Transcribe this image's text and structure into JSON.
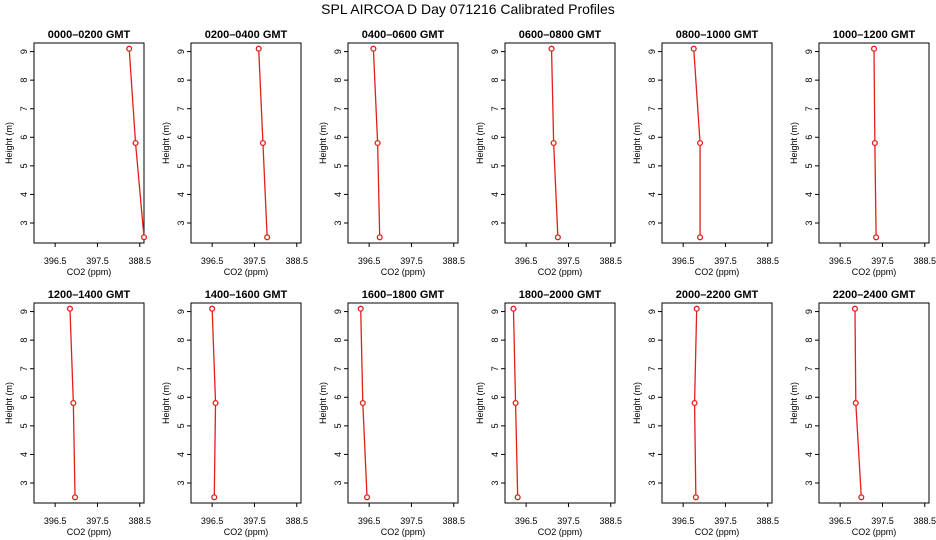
{
  "title": "SPL AIRCOA D  Day 071216  Calibrated Profiles",
  "colors": {
    "profile": "#e0201b",
    "axes": "#000000"
  },
  "chart_data": [
    {
      "type": "line",
      "title": "0000–0200 GMT",
      "xlabel": "CO2 (ppm)",
      "ylabel": "Height (m)",
      "xlim": [
        396.0,
        388.6
      ],
      "ylim": [
        2.3,
        9.3
      ],
      "x_ticks": [
        "396.5",
        "397.5",
        "388.5"
      ],
      "y_ticks": [
        "3",
        "4",
        "5",
        "6",
        "7",
        "8",
        "9"
      ],
      "series": [
        {
          "x": [
            388.25,
            388.4,
            388.6
          ],
          "y": [
            9.1,
            5.8,
            2.5
          ]
        }
      ]
    },
    {
      "type": "line",
      "title": "0200–0400 GMT",
      "xlabel": "CO2 (ppm)",
      "ylabel": "Height (m)",
      "xlim": [
        396.0,
        388.6
      ],
      "ylim": [
        2.3,
        9.3
      ],
      "x_ticks": [
        "396.5",
        "397.5",
        "388.5"
      ],
      "y_ticks": [
        "3",
        "4",
        "5",
        "6",
        "7",
        "8",
        "9"
      ],
      "series": [
        {
          "x": [
            387.6,
            387.7,
            387.8
          ],
          "y": [
            9.1,
            5.8,
            2.5
          ]
        }
      ]
    },
    {
      "type": "line",
      "title": "0400–0600 GMT",
      "xlabel": "CO2 (ppm)",
      "ylabel": "Height (m)",
      "xlim": [
        396.0,
        388.6
      ],
      "ylim": [
        2.3,
        9.3
      ],
      "x_ticks": [
        "396.5",
        "397.5",
        "388.5"
      ],
      "y_ticks": [
        "3",
        "4",
        "5",
        "6",
        "7",
        "8",
        "9"
      ],
      "series": [
        {
          "x": [
            386.6,
            386.7,
            386.75
          ],
          "y": [
            9.1,
            5.8,
            2.5
          ]
        }
      ]
    },
    {
      "type": "line",
      "title": "0600–0800 GMT",
      "xlabel": "CO2 (ppm)",
      "ylabel": "Height (m)",
      "xlim": [
        396.0,
        388.6
      ],
      "ylim": [
        2.3,
        9.3
      ],
      "x_ticks": [
        "396.5",
        "397.5",
        "388.5"
      ],
      "y_ticks": [
        "3",
        "4",
        "5",
        "6",
        "7",
        "8",
        "9"
      ],
      "series": [
        {
          "x": [
            387.1,
            387.15,
            387.25
          ],
          "y": [
            9.1,
            5.8,
            2.5
          ]
        }
      ]
    },
    {
      "type": "line",
      "title": "0800–1000 GMT",
      "xlabel": "CO2 (ppm)",
      "ylabel": "Height (m)",
      "xlim": [
        396.0,
        388.6
      ],
      "ylim": [
        2.3,
        9.3
      ],
      "x_ticks": [
        "396.5",
        "397.5",
        "388.5"
      ],
      "y_ticks": [
        "3",
        "4",
        "5",
        "6",
        "7",
        "8",
        "9"
      ],
      "series": [
        {
          "x": [
            386.75,
            386.9,
            386.9
          ],
          "y": [
            9.1,
            5.8,
            2.5
          ]
        }
      ]
    },
    {
      "type": "line",
      "title": "1000–1200 GMT",
      "xlabel": "CO2 (ppm)",
      "ylabel": "Height (m)",
      "xlim": [
        396.0,
        388.6
      ],
      "ylim": [
        2.3,
        9.3
      ],
      "x_ticks": [
        "396.5",
        "397.5",
        "388.5"
      ],
      "y_ticks": [
        "3",
        "4",
        "5",
        "6",
        "7",
        "8",
        "9"
      ],
      "series": [
        {
          "x": [
            387.3,
            387.32,
            387.35
          ],
          "y": [
            9.1,
            5.8,
            2.5
          ]
        }
      ]
    },
    {
      "type": "line",
      "title": "1200–1400 GMT",
      "xlabel": "CO2 (ppm)",
      "ylabel": "Height (m)",
      "xlim": [
        396.0,
        388.6
      ],
      "ylim": [
        2.3,
        9.3
      ],
      "x_ticks": [
        "396.5",
        "397.5",
        "388.5"
      ],
      "y_ticks": [
        "3",
        "4",
        "5",
        "6",
        "7",
        "8",
        "9"
      ],
      "series": [
        {
          "x": [
            386.85,
            386.93,
            386.97
          ],
          "y": [
            9.1,
            5.8,
            2.5
          ]
        }
      ]
    },
    {
      "type": "line",
      "title": "1400–1600 GMT",
      "xlabel": "CO2 (ppm)",
      "ylabel": "Height (m)",
      "xlim": [
        396.0,
        388.6
      ],
      "ylim": [
        2.3,
        9.3
      ],
      "x_ticks": [
        "396.5",
        "397.5",
        "388.5"
      ],
      "y_ticks": [
        "3",
        "4",
        "5",
        "6",
        "7",
        "8",
        "9"
      ],
      "series": [
        {
          "x": [
            386.5,
            386.58,
            386.55
          ],
          "y": [
            9.1,
            5.8,
            2.5
          ]
        }
      ]
    },
    {
      "type": "line",
      "title": "1600–1800 GMT",
      "xlabel": "CO2 (ppm)",
      "ylabel": "Height (m)",
      "xlim": [
        396.0,
        388.6
      ],
      "ylim": [
        2.3,
        9.3
      ],
      "x_ticks": [
        "396.5",
        "397.5",
        "388.5"
      ],
      "y_ticks": [
        "3",
        "4",
        "5",
        "6",
        "7",
        "8",
        "9"
      ],
      "series": [
        {
          "x": [
            386.3,
            386.35,
            386.45
          ],
          "y": [
            9.1,
            5.8,
            2.5
          ]
        }
      ]
    },
    {
      "type": "line",
      "title": "1800–2000 GMT",
      "xlabel": "CO2 (ppm)",
      "ylabel": "Height (m)",
      "xlim": [
        396.0,
        388.6
      ],
      "ylim": [
        2.3,
        9.3
      ],
      "x_ticks": [
        "396.5",
        "397.5",
        "388.5"
      ],
      "y_ticks": [
        "3",
        "4",
        "5",
        "6",
        "7",
        "8",
        "9"
      ],
      "series": [
        {
          "x": [
            386.2,
            386.25,
            386.3
          ],
          "y": [
            9.1,
            5.8,
            2.5
          ]
        }
      ]
    },
    {
      "type": "line",
      "title": "2000–2200 GMT",
      "xlabel": "CO2 (ppm)",
      "ylabel": "Height (m)",
      "xlim": [
        396.0,
        388.6
      ],
      "ylim": [
        2.3,
        9.3
      ],
      "x_ticks": [
        "396.5",
        "397.5",
        "388.5"
      ],
      "y_ticks": [
        "3",
        "4",
        "5",
        "6",
        "7",
        "8",
        "9"
      ],
      "series": [
        {
          "x": [
            386.82,
            386.77,
            386.8
          ],
          "y": [
            9.1,
            5.8,
            2.5
          ]
        }
      ]
    },
    {
      "type": "line",
      "title": "2200–2400 GMT",
      "xlabel": "CO2 (ppm)",
      "ylabel": "Height (m)",
      "xlim": [
        396.0,
        388.6
      ],
      "ylim": [
        2.3,
        9.3
      ],
      "x_ticks": [
        "396.5",
        "397.5",
        "388.5"
      ],
      "y_ticks": [
        "3",
        "4",
        "5",
        "6",
        "7",
        "8",
        "9"
      ],
      "series": [
        {
          "x": [
            386.85,
            386.87,
            387.0
          ],
          "y": [
            9.1,
            5.8,
            2.5
          ]
        }
      ]
    }
  ]
}
